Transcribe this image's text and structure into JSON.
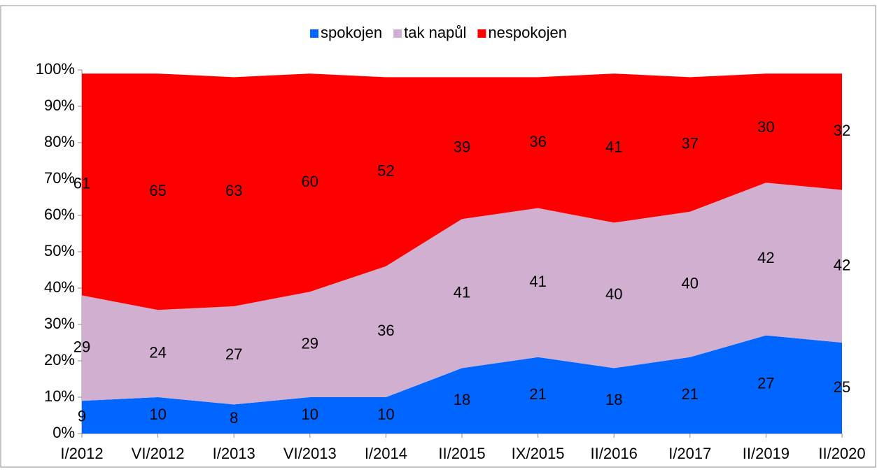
{
  "chart_data": {
    "type": "stacked_area",
    "categories": [
      "I/2012",
      "VI/2012",
      "I/2013",
      "VI/2013",
      "I/2014",
      "II/2015",
      "IX/2015",
      "II/2016",
      "I/2017",
      "II/2019",
      "II/2020"
    ],
    "series": [
      {
        "name": "spokojen",
        "color": "#0066ff",
        "values": [
          9,
          10,
          8,
          10,
          10,
          18,
          21,
          18,
          21,
          27,
          25
        ]
      },
      {
        "name": "tak napůl",
        "color": "#d0afd0",
        "values": [
          29,
          24,
          27,
          29,
          36,
          41,
          41,
          40,
          40,
          42,
          42
        ]
      },
      {
        "name": "nespokojen",
        "color": "#ff0000",
        "values": [
          61,
          65,
          63,
          60,
          52,
          39,
          36,
          41,
          37,
          30,
          32
        ]
      }
    ],
    "ylim": [
      0,
      100
    ],
    "yticks": [
      {
        "value": 0,
        "label": "0%"
      },
      {
        "value": 10,
        "label": "10%"
      },
      {
        "value": 20,
        "label": "20%"
      },
      {
        "value": 30,
        "label": "30%"
      },
      {
        "value": 40,
        "label": "40%"
      },
      {
        "value": 50,
        "label": "50%"
      },
      {
        "value": 60,
        "label": "60%"
      },
      {
        "value": 70,
        "label": "70%"
      },
      {
        "value": 80,
        "label": "80%"
      },
      {
        "value": 90,
        "label": "90%"
      },
      {
        "value": 100,
        "label": "100%"
      }
    ],
    "legend": "top"
  }
}
